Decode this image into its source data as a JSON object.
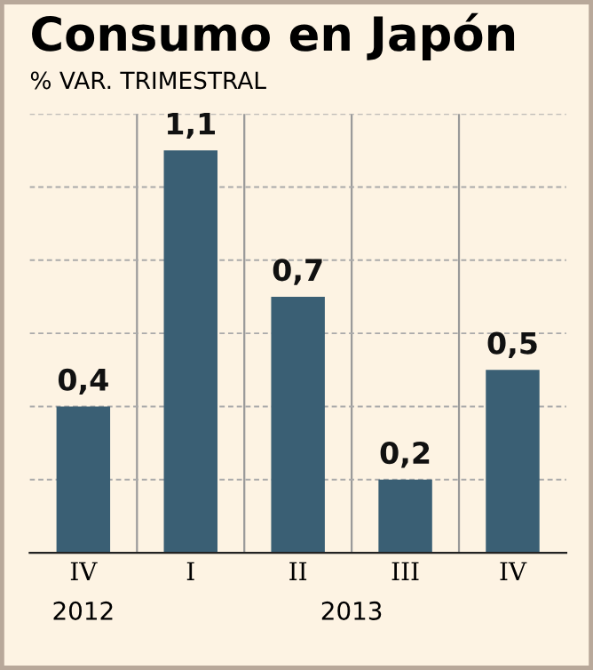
{
  "chart_data": {
    "type": "bar",
    "title": "Consumo en Japón",
    "subtitle": "% VAR. TRIMESTRAL",
    "categories": [
      "IV",
      "I",
      "II",
      "III",
      "IV"
    ],
    "values": [
      0.4,
      1.1,
      0.7,
      0.2,
      0.5
    ],
    "value_labels": [
      "0,4",
      "1,1",
      "0,7",
      "0,2",
      "0,5"
    ],
    "color": "#3a5f74",
    "ylim": [
      0,
      1.2
    ],
    "yticks": [
      {
        "value": 0.2,
        "label": null
      },
      {
        "value": 0.4,
        "label": null
      },
      {
        "value": 0.6,
        "label": null
      },
      {
        "value": 0.8,
        "label": null
      },
      {
        "value": 1.0,
        "label": null
      },
      {
        "value": 1.2,
        "label": null
      }
    ],
    "tick_labels": "x",
    "grid": "y",
    "line_style": "dashed",
    "annotations": [
      "2012",
      "2013"
    ]
  }
}
